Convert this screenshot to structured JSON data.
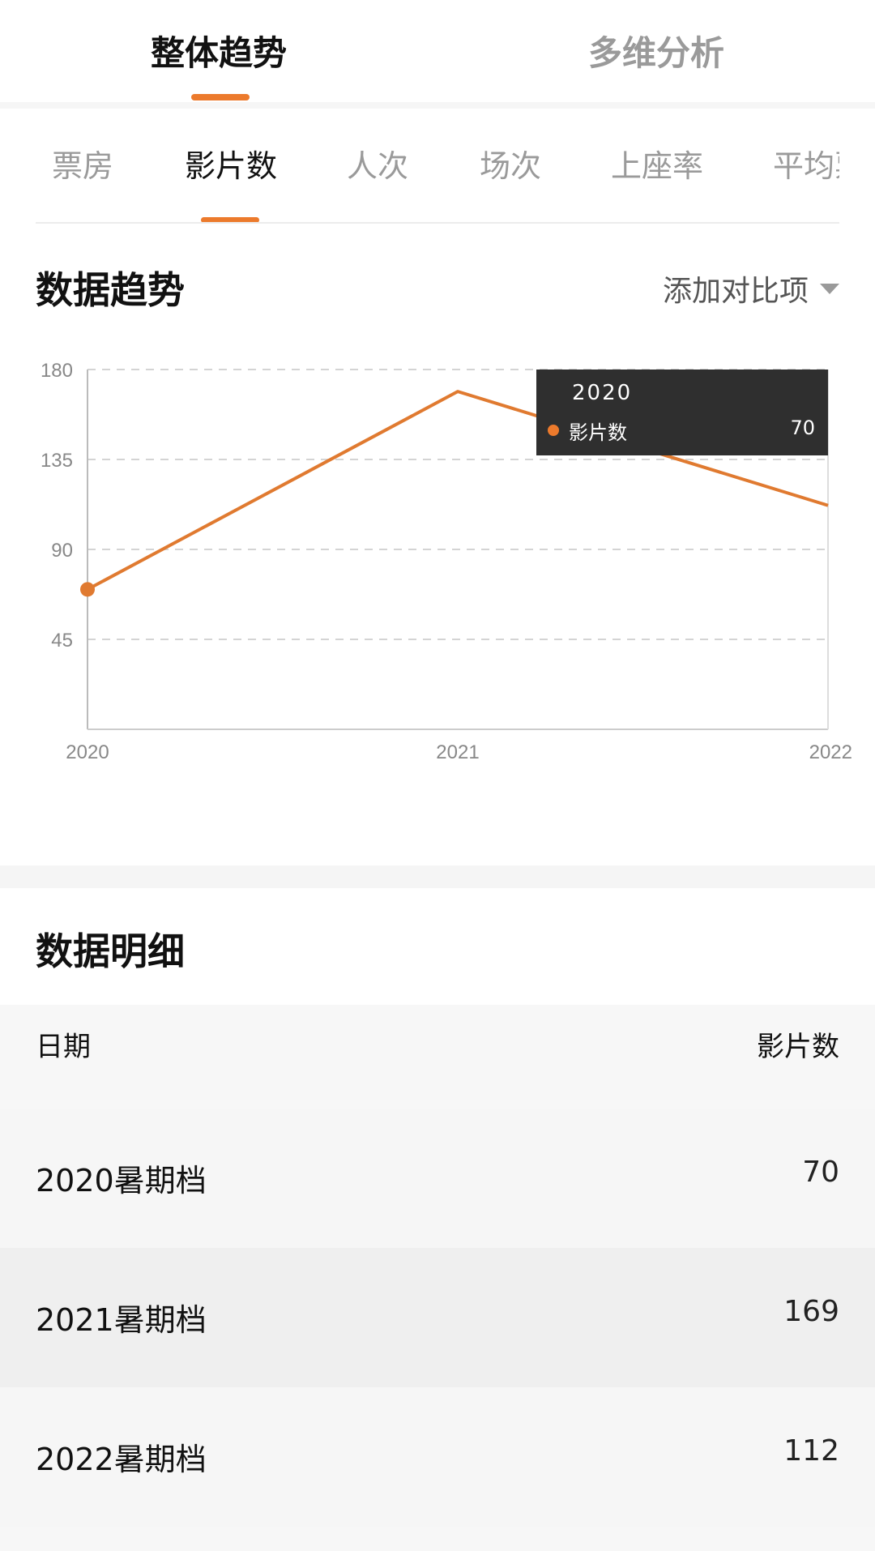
{
  "top_tabs": [
    {
      "label": "整体趋势",
      "active": true
    },
    {
      "label": "多维分析",
      "active": false
    }
  ],
  "metric_tabs": [
    {
      "label": "票房",
      "active": false
    },
    {
      "label": "影片数",
      "active": true
    },
    {
      "label": "人次",
      "active": false
    },
    {
      "label": "场次",
      "active": false
    },
    {
      "label": "上座率",
      "active": false
    },
    {
      "label": "平均票",
      "active": false
    }
  ],
  "trend_section": {
    "title": "数据趋势",
    "compare_label": "添加对比项"
  },
  "tooltip": {
    "year": "2020",
    "series_label": "影片数",
    "value": "70"
  },
  "chart_data": {
    "type": "line",
    "x": [
      "2020",
      "2021",
      "2022"
    ],
    "series": [
      {
        "name": "影片数",
        "values": [
          70,
          169,
          112
        ],
        "color": "#e07a30"
      }
    ],
    "y_ticks": [
      45,
      90,
      135,
      180
    ],
    "ylim": [
      0,
      180
    ],
    "grid": true,
    "highlight_index": 0
  },
  "detail_section": {
    "title": "数据明细",
    "header_left": "日期",
    "header_right": "影片数",
    "rows": [
      {
        "date": "2020暑期档",
        "value": "70"
      },
      {
        "date": "2021暑期档",
        "value": "169"
      },
      {
        "date": "2022暑期档",
        "value": "112"
      }
    ]
  },
  "colors": {
    "accent": "#ec7a2c",
    "line": "#e07a30",
    "tooltip_bg": "#2f2f2f"
  }
}
